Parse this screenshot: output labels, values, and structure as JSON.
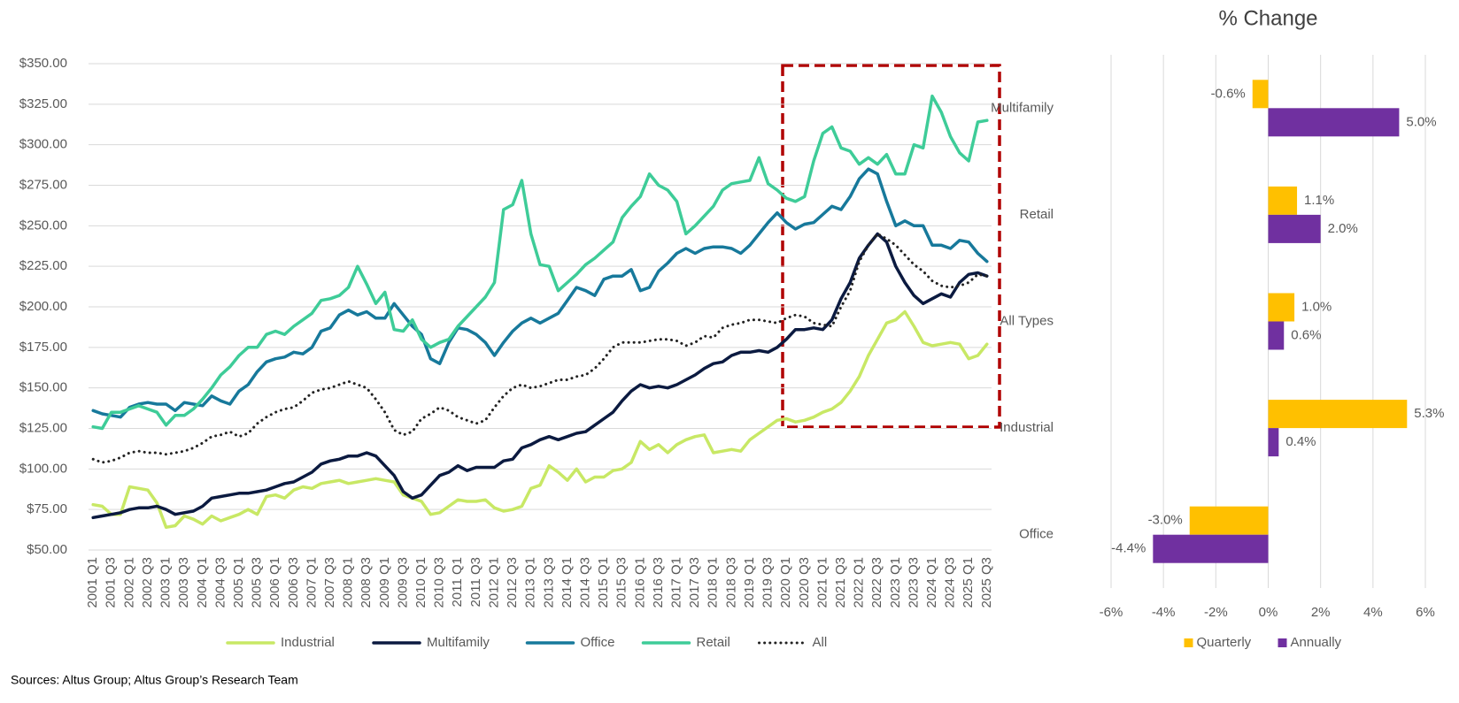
{
  "source": "Sources: Altus Group; Altus Group’s Research Team",
  "chart_data": [
    {
      "type": "line",
      "categories": [
        "2001 Q1",
        null,
        "2001 Q3",
        null,
        "2002 Q1",
        null,
        "2002 Q3",
        null,
        "2003 Q1",
        null,
        "2003 Q3",
        null,
        "2004 Q1",
        null,
        "2004 Q3",
        null,
        "2005 Q1",
        null,
        "2005 Q3",
        null,
        "2006 Q1",
        null,
        "2006 Q3",
        null,
        "2007 Q1",
        null,
        "2007 Q3",
        null,
        "2008 Q1",
        null,
        "2008 Q3",
        null,
        "2009 Q1",
        null,
        "2009 Q3",
        null,
        "2010 Q1",
        null,
        "2010 Q3",
        null,
        "2011 Q1",
        null,
        "2011 Q3",
        null,
        "2012 Q1",
        null,
        "2012 Q3",
        null,
        "2013 Q1",
        null,
        "2013 Q3",
        null,
        "2014 Q1",
        null,
        "2014 Q3",
        null,
        "2015 Q1",
        null,
        "2015 Q3",
        null,
        "2016 Q1",
        null,
        "2016 Q3",
        null,
        "2017 Q1",
        null,
        "2017 Q3",
        null,
        "2018 Q1",
        null,
        "2018 Q3",
        null,
        "2019 Q1",
        null,
        "2019 Q3",
        null,
        "2020 Q1",
        null,
        "2020 Q3",
        null,
        "2021 Q1",
        null,
        "2021 Q3",
        null,
        "2022 Q1",
        null,
        "2022 Q3",
        null,
        "2023 Q1",
        null,
        "2023 Q3",
        null,
        "2024 Q1",
        null,
        "2024 Q3",
        null,
        "2025 Q1",
        null,
        "2025 Q3"
      ],
      "series": [
        {
          "name": "Industrial",
          "color": "#c8e865",
          "values": [
            78,
            77,
            72,
            72,
            89,
            88,
            87,
            79,
            64,
            65,
            71,
            69,
            66,
            71,
            68,
            70,
            72,
            75,
            72,
            83,
            84,
            82,
            87,
            89,
            88,
            91,
            92,
            93,
            91,
            92,
            93,
            94,
            93,
            92,
            84,
            82,
            80,
            72,
            73,
            77,
            81,
            80,
            80,
            81,
            76,
            74,
            75,
            77,
            88,
            90,
            102,
            98,
            93,
            100,
            92,
            95,
            95,
            99,
            100,
            104,
            117,
            112,
            115,
            110,
            115,
            118,
            120,
            121,
            110,
            111,
            112,
            111,
            118,
            122,
            126,
            130,
            131,
            129,
            130,
            132,
            135,
            137,
            141,
            148,
            157,
            170,
            180,
            190,
            192,
            197,
            188,
            178,
            176,
            177,
            178,
            177,
            168,
            170,
            177
          ]
        },
        {
          "name": "Multifamily",
          "color": "#0b1a40",
          "values": [
            70,
            71,
            72,
            73,
            75,
            76,
            76,
            77,
            75,
            72,
            73,
            74,
            77,
            82,
            83,
            84,
            85,
            85,
            86,
            87,
            89,
            91,
            92,
            95,
            98,
            103,
            105,
            106,
            108,
            108,
            110,
            108,
            102,
            96,
            86,
            82,
            84,
            90,
            96,
            98,
            102,
            99,
            101,
            101,
            101,
            105,
            106,
            113,
            115,
            118,
            120,
            118,
            120,
            122,
            123,
            127,
            131,
            135,
            142,
            148,
            152,
            150,
            151,
            150,
            152,
            155,
            158,
            162,
            165,
            166,
            170,
            172,
            172,
            173,
            172,
            175,
            180,
            186,
            186,
            187,
            186,
            192,
            205,
            215,
            230,
            238,
            245,
            240,
            225,
            215,
            207,
            202,
            205,
            208,
            206,
            215,
            220,
            221,
            219
          ]
        },
        {
          "name": "Office",
          "color": "#17799b",
          "values": [
            136,
            134,
            133,
            132,
            138,
            140,
            141,
            140,
            140,
            136,
            141,
            140,
            139,
            145,
            142,
            140,
            148,
            152,
            160,
            166,
            168,
            169,
            172,
            171,
            175,
            185,
            187,
            195,
            198,
            195,
            197,
            193,
            193,
            202,
            195,
            188,
            183,
            168,
            165,
            178,
            187,
            186,
            183,
            178,
            170,
            178,
            185,
            190,
            193,
            190,
            193,
            196,
            204,
            212,
            210,
            207,
            217,
            219,
            219,
            223,
            210,
            212,
            222,
            227,
            233,
            236,
            233,
            236,
            237,
            237,
            236,
            233,
            238,
            245,
            252,
            258,
            252,
            248,
            251,
            252,
            257,
            262,
            260,
            268,
            279,
            285,
            282,
            265,
            250,
            253,
            250,
            250,
            238,
            238,
            236,
            241,
            240,
            233,
            228
          ]
        },
        {
          "name": "Retail",
          "color": "#3ecc98",
          "values": [
            126,
            125,
            135,
            135,
            137,
            139,
            137,
            135,
            127,
            133,
            133,
            137,
            143,
            150,
            158,
            163,
            170,
            175,
            175,
            183,
            185,
            183,
            188,
            192,
            196,
            204,
            205,
            207,
            212,
            225,
            214,
            202,
            209,
            186,
            185,
            192,
            180,
            175,
            178,
            180,
            188,
            194,
            200,
            206,
            215,
            260,
            263,
            278,
            245,
            226,
            225,
            210,
            215,
            220,
            226,
            230,
            235,
            240,
            255,
            262,
            268,
            282,
            275,
            272,
            265,
            245,
            250,
            256,
            262,
            272,
            276,
            277,
            278,
            292,
            276,
            272,
            267,
            265,
            268,
            290,
            307,
            311,
            298,
            296,
            288,
            292,
            288,
            294,
            282,
            282,
            300,
            298,
            330,
            320,
            305,
            295,
            290,
            314,
            315
          ]
        },
        {
          "name": "All",
          "color": "#222222",
          "line_style": "dotted",
          "values": [
            106,
            104,
            105,
            107,
            110,
            111,
            110,
            110,
            109,
            110,
            111,
            113,
            116,
            120,
            121,
            123,
            120,
            122,
            128,
            132,
            135,
            137,
            138,
            142,
            147,
            149,
            150,
            152,
            154,
            152,
            150,
            143,
            135,
            124,
            121,
            123,
            131,
            134,
            138,
            136,
            132,
            130,
            128,
            130,
            138,
            145,
            150,
            152,
            150,
            151,
            153,
            155,
            155,
            157,
            158,
            162,
            168,
            175,
            178,
            178,
            178,
            179,
            180,
            180,
            179,
            176,
            178,
            182,
            181,
            187,
            189,
            190,
            192,
            192,
            191,
            190,
            193,
            195,
            194,
            190,
            189,
            188,
            200,
            210,
            228,
            238,
            245,
            242,
            238,
            232,
            226,
            222,
            216,
            213,
            212,
            213,
            215,
            220,
            219
          ]
        }
      ],
      "ylim": [
        50,
        350
      ],
      "yticks": [
        {
          "value": 50,
          "label": "$50.00"
        },
        {
          "value": 75,
          "label": "$75.00"
        },
        {
          "value": 100,
          "label": "$100.00"
        },
        {
          "value": 125,
          "label": "$125.00"
        },
        {
          "value": 150,
          "label": "$150.00"
        },
        {
          "value": 175,
          "label": "$175.00"
        },
        {
          "value": 200,
          "label": "$200.00"
        },
        {
          "value": 225,
          "label": "$225.00"
        },
        {
          "value": 250,
          "label": "$250.00"
        },
        {
          "value": 275,
          "label": "$275.00"
        },
        {
          "value": 300,
          "label": "$300.00"
        },
        {
          "value": 325,
          "label": "$325.00"
        },
        {
          "value": 350,
          "label": "$350.00"
        }
      ],
      "grid": true
    },
    {
      "type": "hbar",
      "title": "% Change",
      "categories": [
        "Multifamily",
        "Retail",
        "All Types",
        "Industrial",
        "Office"
      ],
      "series": [
        {
          "name": "Quarterly",
          "color": "#ffc000",
          "values": [
            -0.6,
            1.1,
            1.0,
            5.3,
            -3.0
          ],
          "value_labels": [
            "-0.6%",
            "1.1%",
            "1.0%",
            "5.3%",
            "-3.0%"
          ]
        },
        {
          "name": "Annually",
          "color": "#7030a0",
          "values": [
            5.0,
            2.0,
            0.6,
            0.4,
            -4.4
          ],
          "value_labels": [
            "5.0%",
            "2.0%",
            "0.6%",
            "0.4%",
            "-4.4%"
          ]
        }
      ],
      "xlim": [
        -6,
        6
      ],
      "xticks": [
        {
          "value": -6,
          "label": "-6%"
        },
        {
          "value": -4,
          "label": "-4%"
        },
        {
          "value": -2,
          "label": "-2%"
        },
        {
          "value": 0,
          "label": "0%"
        },
        {
          "value": 2,
          "label": "2%"
        },
        {
          "value": 4,
          "label": "4%"
        },
        {
          "value": 6,
          "label": "6%"
        }
      ],
      "grid": true
    }
  ]
}
